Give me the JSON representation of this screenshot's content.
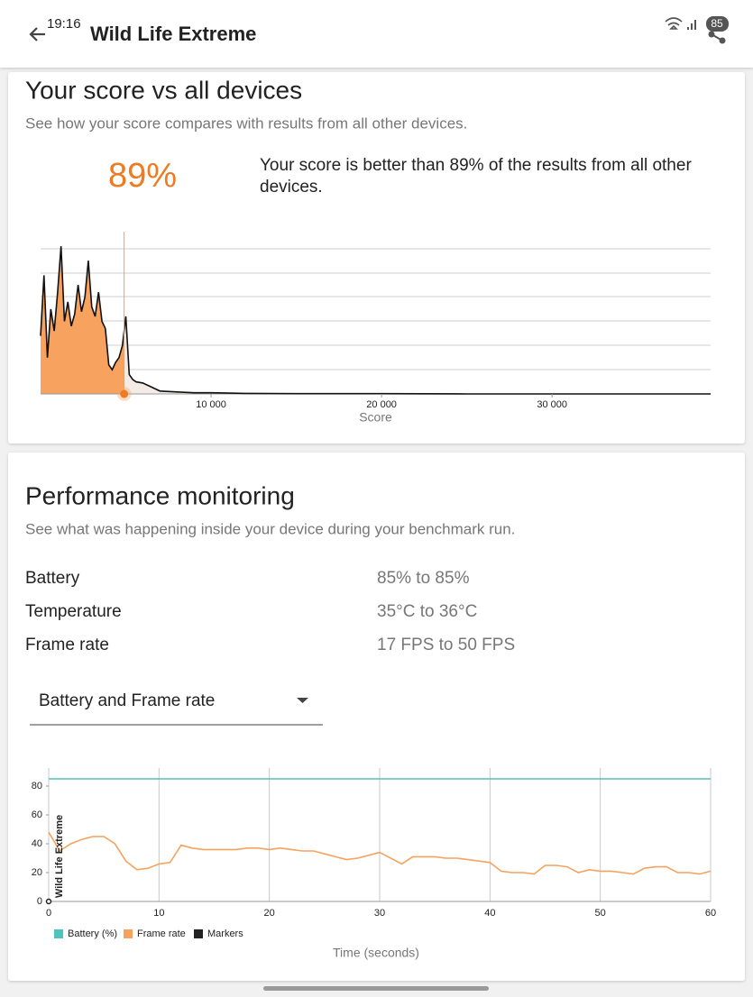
{
  "status_bar": {
    "time": "19:16",
    "battery": "85"
  },
  "header": {
    "title": "Wild Life Extreme"
  },
  "score_card": {
    "title": "Your score vs all devices",
    "subtitle": "See how your score compares with results from all other devices.",
    "percentile": "89%",
    "description_lines": [
      "Your score is better than 89% of the results from all other",
      "devices."
    ]
  },
  "score_chart": {
    "type": "area",
    "x_label": "Score",
    "color": "#f7a25e",
    "line_color": "#111111",
    "xlim": [
      0,
      39300
    ],
    "ylim": [
      0,
      6.7
    ],
    "xticks": [
      {
        "value": 10000,
        "label": "10 000"
      },
      {
        "value": 20000,
        "label": "20 000"
      },
      {
        "value": 30000,
        "label": "30 000"
      }
    ],
    "your_score": 4900,
    "x": [
      0,
      200,
      400,
      600,
      800,
      1000,
      1200,
      1400,
      1600,
      1800,
      2000,
      2200,
      2400,
      2600,
      2800,
      3000,
      3200,
      3400,
      3600,
      3800,
      4000,
      4200,
      4400,
      4600,
      4800,
      5000,
      5200,
      5400,
      5600,
      6000,
      7000,
      8000,
      9000,
      10000,
      12000,
      15000,
      20000,
      25000,
      30000,
      39300
    ],
    "values": [
      2.4,
      4.9,
      1.5,
      3.5,
      2.6,
      4.2,
      6.1,
      3.0,
      3.8,
      2.8,
      3.3,
      4.5,
      3.4,
      4.0,
      5.5,
      3.6,
      3.2,
      4.2,
      3.0,
      2.7,
      1.2,
      1.0,
      1.3,
      1.5,
      2.0,
      3.2,
      0.8,
      0.6,
      0.5,
      0.45,
      0.12,
      0.08,
      0.05,
      0.05,
      0.02,
      0.01,
      0.01,
      0,
      0,
      0
    ]
  },
  "perf_card": {
    "title": "Performance monitoring",
    "subtitle": "See what was happening inside your device during your benchmark run.",
    "rows": [
      [
        "Battery",
        "85% to 85%"
      ],
      [
        "Temperature",
        "35°C to 36°C"
      ],
      [
        "Frame rate",
        "17 FPS to 50 FPS"
      ]
    ],
    "dropdown": "Battery and Frame rate"
  },
  "perf_chart": {
    "type": "line",
    "x_label": "Time (seconds)",
    "xlim": [
      0,
      60
    ],
    "ylim": [
      0,
      92.5
    ],
    "xticks": [
      0,
      10,
      20,
      30,
      40,
      50,
      60
    ],
    "yticks": [
      0,
      20,
      40,
      60,
      80
    ],
    "grid": true,
    "series": [
      {
        "name": "Battery (%)",
        "color": "#4fc3bd",
        "x": [
          0,
          60
        ],
        "values": [
          85,
          85
        ]
      },
      {
        "name": "Frame rate",
        "color": "#f7a25e",
        "x": [
          0,
          1,
          2,
          3,
          4,
          5,
          6,
          7,
          8,
          9,
          10,
          11,
          12,
          13,
          14,
          15,
          16,
          17,
          18,
          19,
          20,
          21,
          22,
          23,
          24,
          25,
          26,
          27,
          28,
          29,
          30,
          31,
          32,
          33,
          34,
          35,
          36,
          37,
          38,
          39,
          40,
          41,
          42,
          43,
          44,
          45,
          46,
          47,
          48,
          49,
          50,
          51,
          52,
          53,
          54,
          55,
          56,
          57,
          58,
          59,
          60
        ],
        "values": [
          48,
          35,
          40,
          43,
          45,
          45,
          40,
          28,
          22,
          23,
          26,
          27,
          39,
          37,
          36,
          36,
          36,
          36,
          37,
          37,
          36,
          37,
          36,
          35,
          35,
          33,
          31,
          29,
          30,
          32,
          34,
          30,
          26,
          31,
          31,
          31,
          30,
          30,
          29,
          28,
          27,
          21,
          20,
          20,
          19,
          25,
          25,
          24,
          20,
          22,
          21,
          21,
          20,
          19,
          23,
          24,
          24,
          20,
          20,
          19,
          21
        ]
      },
      {
        "name": "Markers",
        "color": "#222222",
        "markers": [
          {
            "x": 0,
            "label": "Wild Life Extreme"
          }
        ]
      }
    ]
  }
}
